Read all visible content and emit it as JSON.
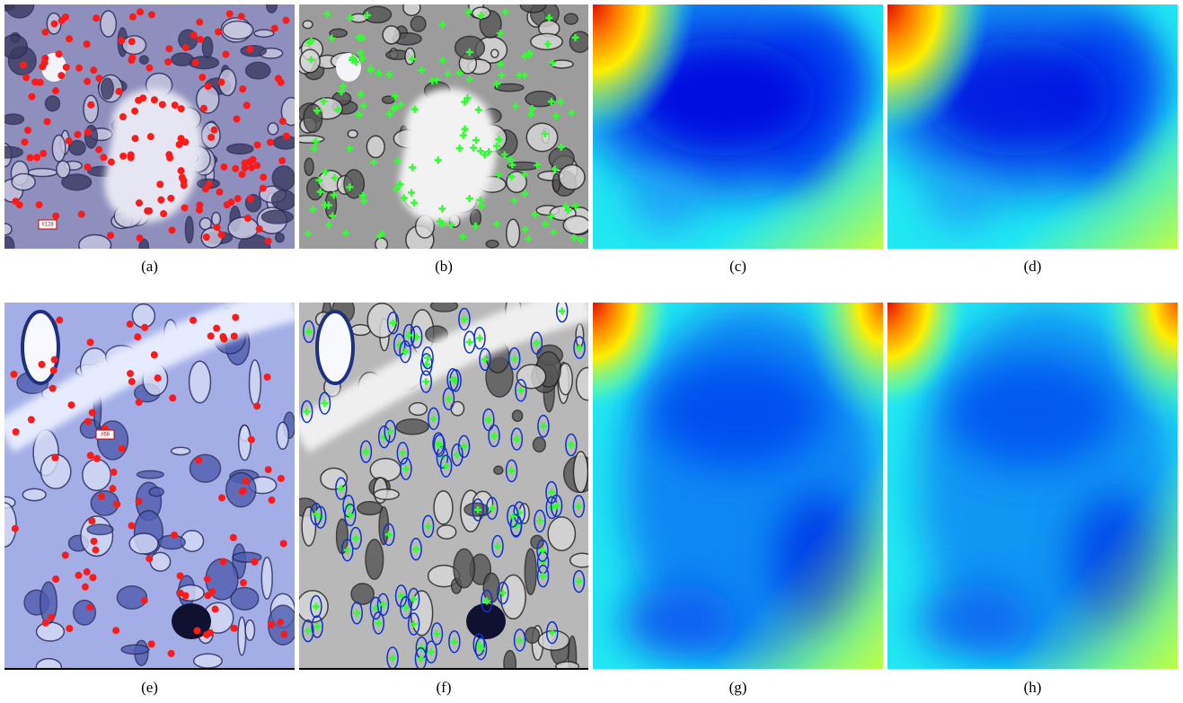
{
  "panels": [
    {
      "caption": "(a)",
      "annotation": "#128"
    },
    {
      "caption": "(b)"
    },
    {
      "caption": "(c)"
    },
    {
      "caption": "(d)"
    },
    {
      "caption": "(e)",
      "annotation": "#68"
    },
    {
      "caption": "(f)"
    },
    {
      "caption": "(g)"
    },
    {
      "caption": "(h)"
    }
  ]
}
